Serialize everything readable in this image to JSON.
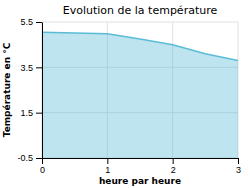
{
  "chart_data": {
    "type": "area",
    "title": "Evolution de la température",
    "xlabel": "heure par heure",
    "ylabel": "Température en °C",
    "x": [
      0,
      0.5,
      1.0,
      1.5,
      2.0,
      2.5,
      3.0
    ],
    "values": [
      5.05,
      5.02,
      4.98,
      4.75,
      4.5,
      4.1,
      3.8
    ],
    "color": "#5bbcd6",
    "xlim": [
      0,
      3
    ],
    "ylim": [
      -0.5,
      5.5
    ],
    "xticks": [
      0,
      1,
      2,
      3
    ],
    "yticks": [
      -0.5,
      1.5,
      3.5,
      5.5
    ],
    "grid": true
  }
}
